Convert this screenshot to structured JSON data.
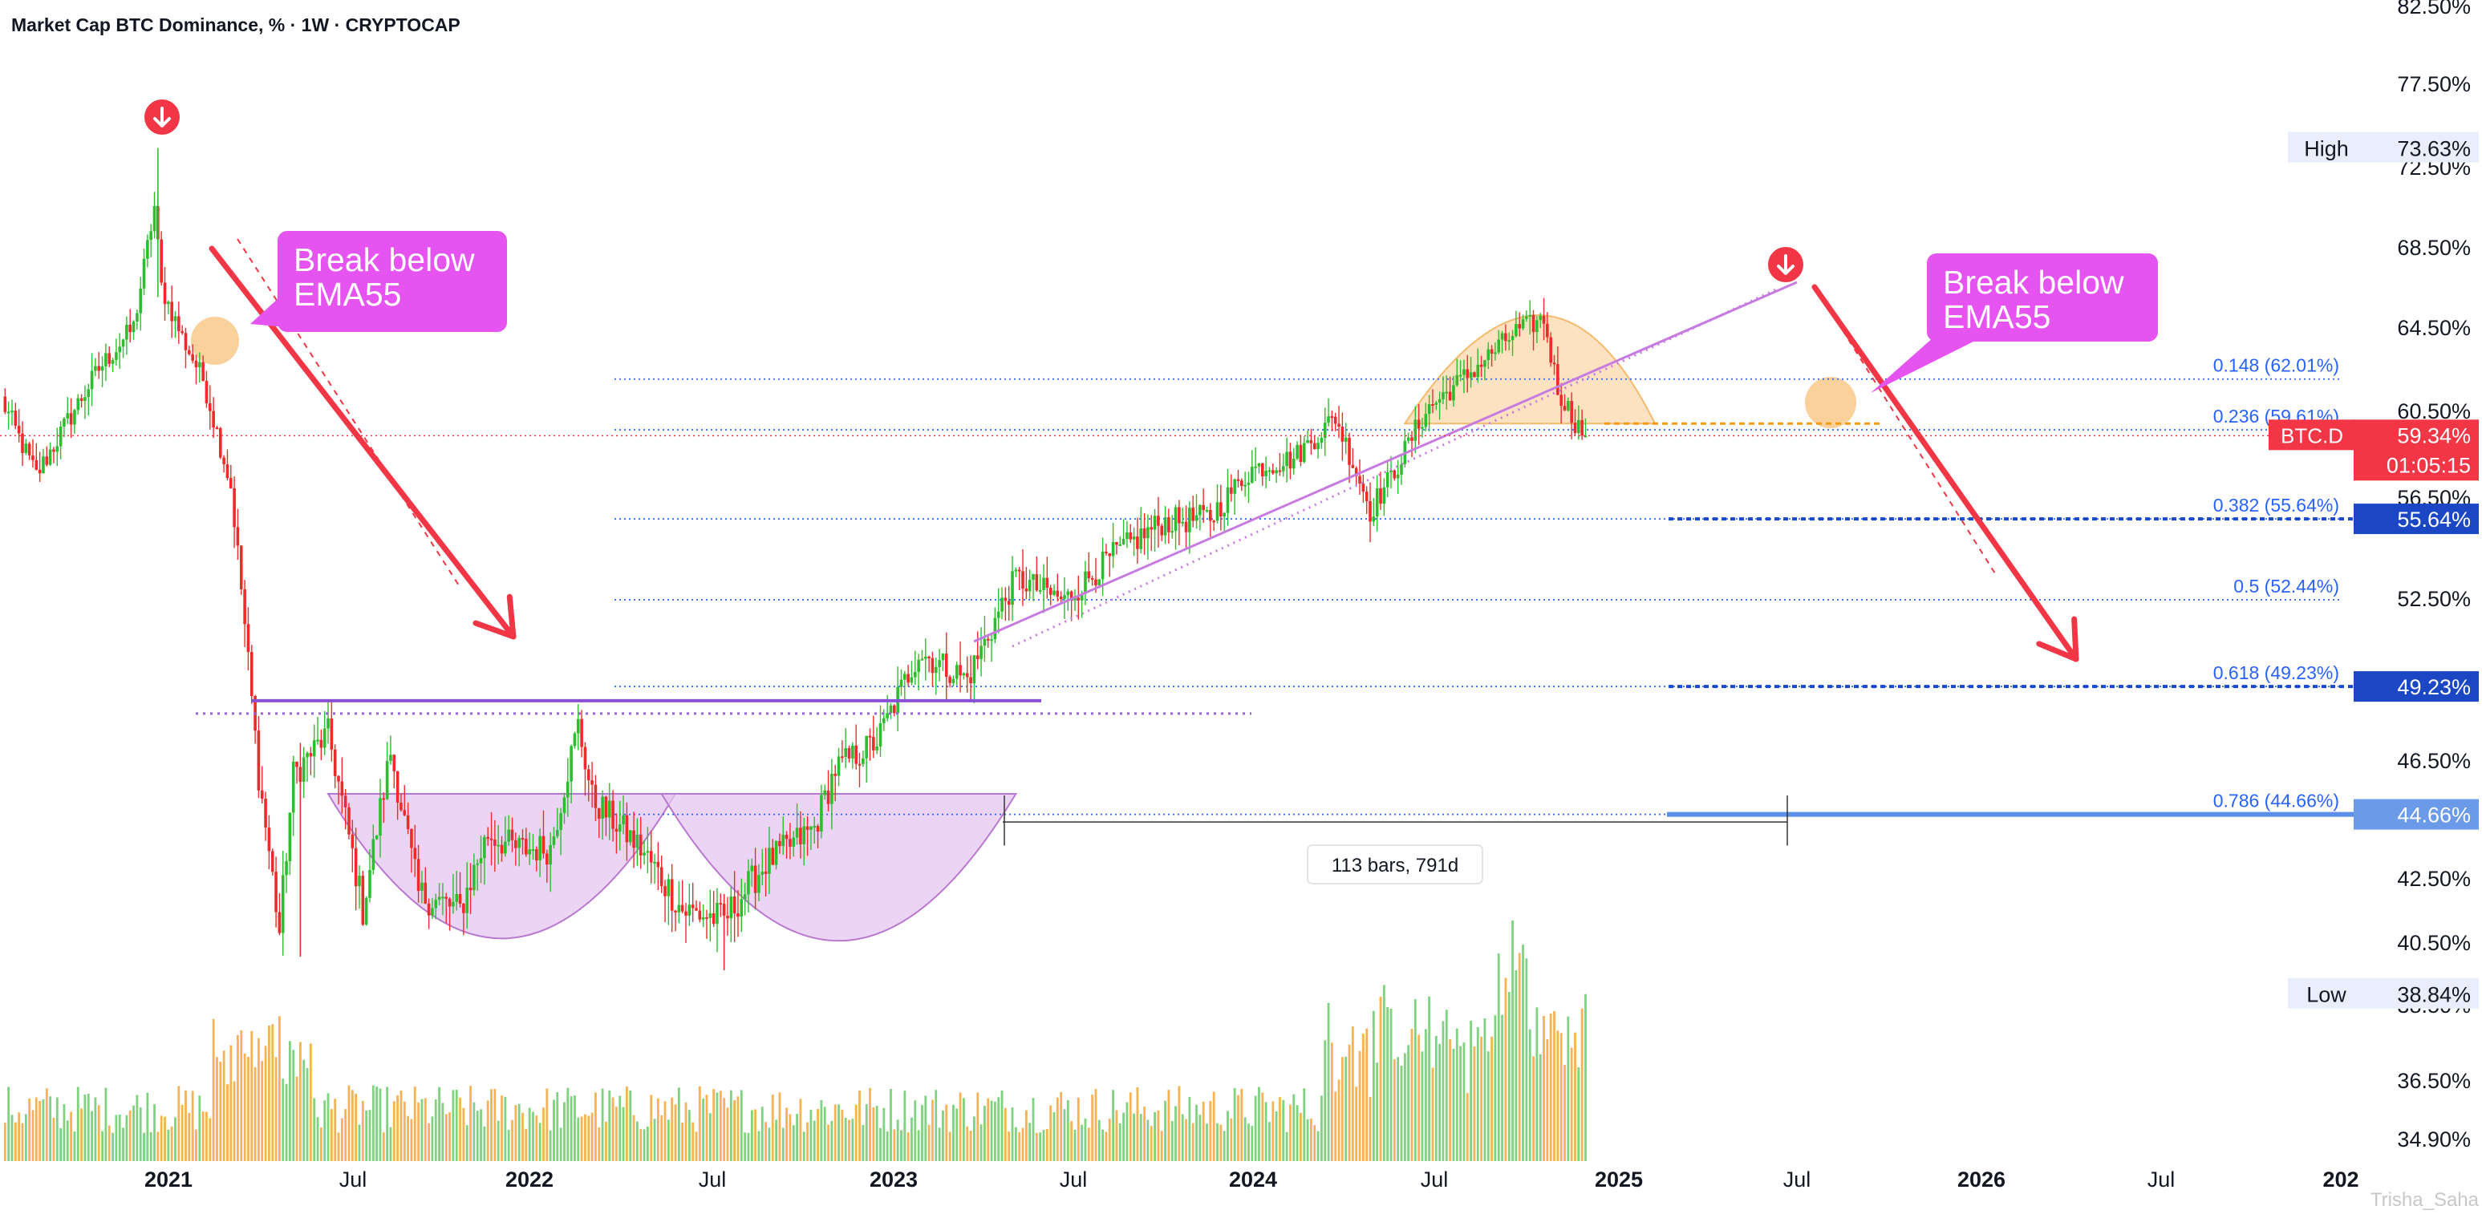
{
  "header": {
    "title": "Market Cap BTC Dominance, % · 1W · CRYPTOCAP"
  },
  "colors": {
    "up": "#26a69a",
    "up_candle": "#2ebd2e",
    "down": "#ef2a2a",
    "vol_up": "#7fd27f",
    "vol_down": "#f7b255",
    "annotation_magenta": "#e553f0",
    "arrow_red": "#f23645",
    "fib_blue": "#2962ff",
    "trend_violet": "#c77be0",
    "cup_fill": "#e6c6f0",
    "top_fill": "#fbd6a6",
    "price_badge": "#f23645"
  },
  "chart_data": {
    "type": "candlestick",
    "title": "Market Cap BTC Dominance, % · 1W · CRYPTOCAP",
    "symbol": "BTC.D",
    "interval": "1W",
    "y_axis": {
      "side": "right",
      "ticks": [
        "82.50%",
        "77.50%",
        "72.50%",
        "68.50%",
        "64.50%",
        "60.50%",
        "56.50%",
        "52.50%",
        "46.50%",
        "42.50%",
        "40.50%",
        "38.50%",
        "36.50%",
        "34.90%"
      ],
      "tick_values": [
        82.5,
        77.5,
        72.5,
        68.5,
        64.5,
        60.5,
        56.5,
        52.5,
        46.5,
        42.5,
        40.5,
        38.5,
        36.5,
        34.9
      ]
    },
    "x_axis": {
      "ticks": [
        "2021",
        "Jul",
        "2022",
        "Jul",
        "2023",
        "Jul",
        "2024",
        "Jul",
        "2025",
        "Jul",
        "2026",
        "Jul",
        "202"
      ],
      "bold": [
        true,
        false,
        true,
        false,
        true,
        false,
        true,
        false,
        true,
        false,
        true,
        false,
        true
      ]
    },
    "anchors": [
      {
        "t": 0,
        "v": 61
      },
      {
        "t": 10,
        "v": 57.5
      },
      {
        "t": 28,
        "v": 62.5
      },
      {
        "t": 38,
        "v": 64.5
      },
      {
        "t": 44,
        "v": 70.5
      },
      {
        "t": 46,
        "v": 66.5
      },
      {
        "t": 52,
        "v": 64
      },
      {
        "t": 58,
        "v": 62
      },
      {
        "t": 66,
        "v": 57
      },
      {
        "t": 74,
        "v": 46
      },
      {
        "t": 80,
        "v": 40.8
      },
      {
        "t": 84,
        "v": 46
      },
      {
        "t": 94,
        "v": 47.5
      },
      {
        "t": 104,
        "v": 41.5
      },
      {
        "t": 112,
        "v": 46.8
      },
      {
        "t": 120,
        "v": 42
      },
      {
        "t": 132,
        "v": 41.5
      },
      {
        "t": 140,
        "v": 44
      },
      {
        "t": 148,
        "v": 43.5
      },
      {
        "t": 158,
        "v": 43.5
      },
      {
        "t": 166,
        "v": 47.8
      },
      {
        "t": 170,
        "v": 45.2
      },
      {
        "t": 184,
        "v": 43.5
      },
      {
        "t": 196,
        "v": 41.5
      },
      {
        "t": 208,
        "v": 41.2
      },
      {
        "t": 220,
        "v": 43
      },
      {
        "t": 234,
        "v": 44.2
      },
      {
        "t": 240,
        "v": 46.2
      },
      {
        "t": 252,
        "v": 47.2
      },
      {
        "t": 264,
        "v": 50.5
      },
      {
        "t": 278,
        "v": 49.5
      },
      {
        "t": 292,
        "v": 53.3
      },
      {
        "t": 306,
        "v": 52.4
      },
      {
        "t": 320,
        "v": 54.2
      },
      {
        "t": 334,
        "v": 55.5
      },
      {
        "t": 348,
        "v": 55.7
      },
      {
        "t": 360,
        "v": 57.8
      },
      {
        "t": 372,
        "v": 58.3
      },
      {
        "t": 384,
        "v": 60.2
      },
      {
        "t": 394,
        "v": 56
      },
      {
        "t": 400,
        "v": 57.4
      },
      {
        "t": 410,
        "v": 60.5
      },
      {
        "t": 424,
        "v": 62.5
      },
      {
        "t": 436,
        "v": 64.3
      },
      {
        "t": 444,
        "v": 64.9
      },
      {
        "t": 448,
        "v": 61.5
      },
      {
        "t": 453,
        "v": 60
      },
      {
        "t": 456,
        "v": 59.34
      }
    ],
    "volume_seed_note": "",
    "fibonacci_levels": [
      {
        "label": "0.148 (62.01%)",
        "value": 62.01
      },
      {
        "label": "0.236 (59.61%)",
        "value": 59.61
      },
      {
        "label": "0.382 (55.64%)",
        "value": 55.64
      },
      {
        "label": "0.5 (52.44%)",
        "value": 52.44
      },
      {
        "label": "0.618 (49.23%)",
        "value": 49.23
      },
      {
        "label": "0.786 (44.66%)",
        "value": 44.66
      }
    ],
    "axis_badges": [
      {
        "text": "55.64%",
        "value": 55.64
      },
      {
        "text": "49.23%",
        "value": 49.23
      },
      {
        "text": "44.66%",
        "value": 44.66
      }
    ],
    "high": {
      "label": "High",
      "value_text": "73.63%",
      "value": 73.63
    },
    "low": {
      "label": "Low",
      "value_text": "38.84%",
      "value": 38.84
    },
    "current": {
      "symbol": "BTC.D",
      "value_text": "59.34%",
      "countdown": "01:05:15",
      "value": 59.34
    },
    "annotations": {
      "left_callout": [
        "Break below",
        "EMA55"
      ],
      "right_callout": [
        "Break below",
        "EMA55"
      ],
      "measure_label": "113 bars, 791d"
    },
    "neckline_value": 48.7,
    "support_value": 59.9
  },
  "watermark": "Trisha_Saha"
}
